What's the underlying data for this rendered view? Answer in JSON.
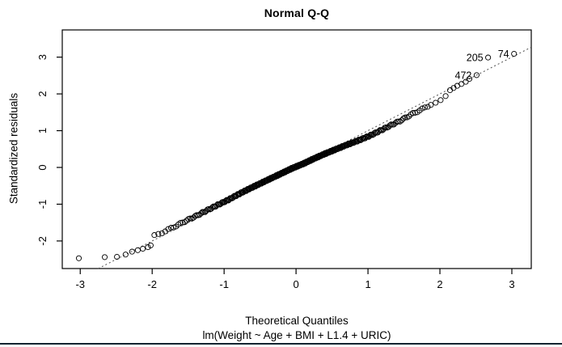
{
  "plot": {
    "title": "Normal Q-Q",
    "xlabel": "Theoretical Quantiles",
    "ylabel": "Standardized residuals",
    "subtitle": "lm(Weight ~ Age + BMI + L1.4 + URIC)"
  },
  "window": {
    "bottom_bar_color": "#102430",
    "background_color": "#ffffff"
  },
  "chart_data": {
    "type": "scatter",
    "subtype": "normal-qq-plot",
    "title": "Normal Q-Q",
    "xlabel": "Theoretical Quantiles",
    "ylabel": "Standardized residuals",
    "model": "lm(Weight ~ Age + BMI + L1.4 + URIC)",
    "x_ticks": [
      -3,
      -2,
      -1,
      0,
      1,
      2,
      3
    ],
    "y_ticks": [
      -2,
      -1,
      0,
      1,
      2,
      3
    ],
    "xlim": [
      -3.25,
      3.27
    ],
    "ylim": [
      -2.75,
      3.74
    ],
    "grid": false,
    "legend": "none",
    "reference_line": {
      "type": "identity",
      "intercept": 0,
      "slope": 1,
      "style": "dotted",
      "color": "#4d4d4d"
    },
    "labeled_points": [
      {
        "label": "472",
        "q": 2.51,
        "v": 2.51
      },
      {
        "label": "205",
        "q": 2.67,
        "v": 2.99
      },
      {
        "label": "74",
        "q": 3.03,
        "v": 3.09
      }
    ],
    "edge_points": [
      [
        -3.02,
        -2.47
      ],
      [
        -2.66,
        -2.44
      ],
      [
        -2.49,
        -2.43
      ],
      [
        -2.37,
        -2.37
      ],
      [
        -2.28,
        -2.29
      ],
      [
        -2.2,
        -2.25
      ],
      [
        -2.13,
        -2.21
      ],
      [
        -2.06,
        -2.17
      ],
      [
        -2.02,
        -2.12
      ],
      [
        1.94,
        1.76
      ],
      [
        2.01,
        1.83
      ],
      [
        2.08,
        1.94
      ],
      [
        2.14,
        2.1
      ],
      [
        2.19,
        2.16
      ],
      [
        2.24,
        2.22
      ],
      [
        2.3,
        2.27
      ],
      [
        2.36,
        2.33
      ],
      [
        2.41,
        2.41
      ]
    ],
    "band": {
      "q_start": -1.97,
      "q_end": 1.88,
      "step_k": 0.008,
      "jitter": 0.02,
      "curve_knots": [
        [
          -1.97,
          -1.86
        ],
        [
          -1.85,
          -1.76
        ],
        [
          -1.7,
          -1.62
        ],
        [
          -1.55,
          -1.47
        ],
        [
          -1.4,
          -1.33
        ],
        [
          -1.25,
          -1.18
        ],
        [
          -1.1,
          -1.03
        ],
        [
          -0.95,
          -0.89
        ],
        [
          -0.8,
          -0.73
        ],
        [
          -0.65,
          -0.58
        ],
        [
          -0.5,
          -0.44
        ],
        [
          -0.35,
          -0.3
        ],
        [
          -0.2,
          -0.16
        ],
        [
          -0.05,
          -0.02
        ],
        [
          0.1,
          0.1
        ],
        [
          0.25,
          0.24
        ],
        [
          0.4,
          0.37
        ],
        [
          0.55,
          0.49
        ],
        [
          0.7,
          0.61
        ],
        [
          0.85,
          0.72
        ],
        [
          1.0,
          0.84
        ],
        [
          1.15,
          0.98
        ],
        [
          1.3,
          1.13
        ],
        [
          1.45,
          1.27
        ],
        [
          1.6,
          1.44
        ],
        [
          1.75,
          1.58
        ],
        [
          1.88,
          1.72
        ]
      ]
    },
    "point_style": {
      "radius": 3.1,
      "stroke": "#000000"
    }
  }
}
